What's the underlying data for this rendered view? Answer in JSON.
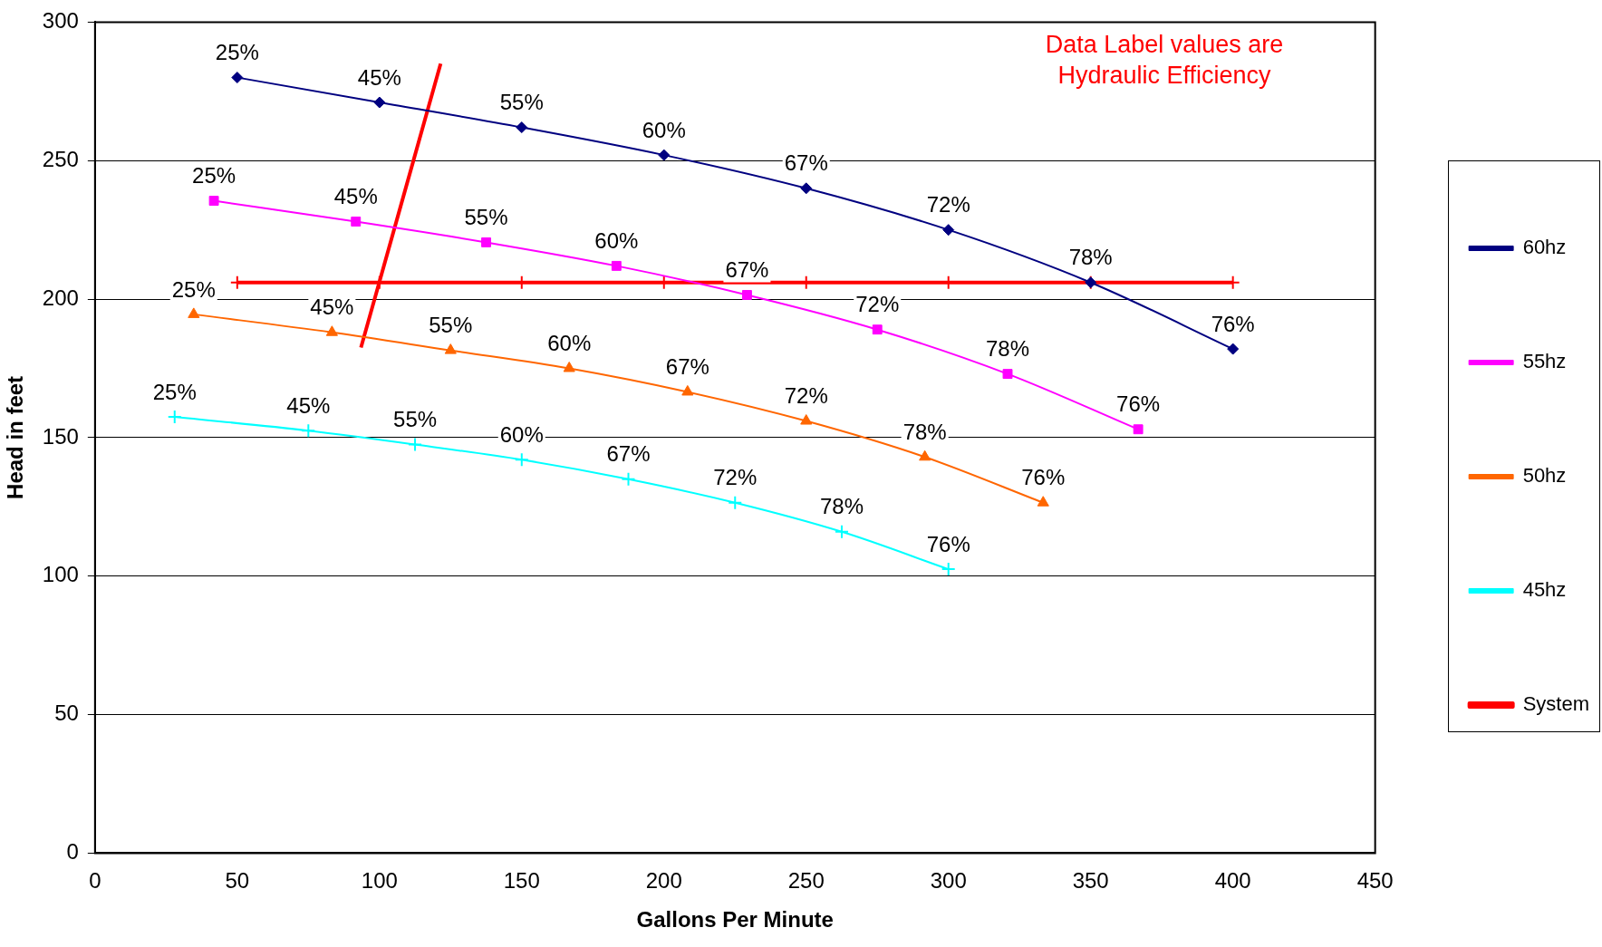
{
  "chart_data": {
    "type": "line",
    "xlabel": "Gallons Per Minute",
    "ylabel": "Head in feet",
    "xlim": [
      0,
      450
    ],
    "xticks": [
      0,
      50,
      100,
      150,
      200,
      250,
      300,
      350,
      400,
      450
    ],
    "ylim": [
      0,
      300
    ],
    "yticks": [
      0,
      50,
      100,
      150,
      200,
      250,
      300
    ],
    "grid": "y",
    "legend": "right",
    "annotations": [
      "Data Label values are Hydraulic Efficiency",
      {
        "text": "25%",
        "x": 50,
        "y": 280
      },
      {
        "text": "45%",
        "x": 100,
        "y": 271
      },
      {
        "text": "55%",
        "x": 150,
        "y": 262
      },
      {
        "text": "60%",
        "x": 200,
        "y": 252
      },
      {
        "text": "67%",
        "x": 250,
        "y": 240
      },
      {
        "text": "72%",
        "x": 300,
        "y": 225
      },
      {
        "text": "78%",
        "x": 350,
        "y": 206
      },
      {
        "text": "76%",
        "x": 400,
        "y": 182
      },
      {
        "text": "25%",
        "x": 41.8,
        "y": 235.5
      },
      {
        "text": "45%",
        "x": 91.7,
        "y": 228
      },
      {
        "text": "55%",
        "x": 137.5,
        "y": 220.5
      },
      {
        "text": "60%",
        "x": 183.3,
        "y": 212
      },
      {
        "text": "67%",
        "x": 229.2,
        "y": 201.5
      },
      {
        "text": "72%",
        "x": 275,
        "y": 189
      },
      {
        "text": "78%",
        "x": 320.8,
        "y": 173
      },
      {
        "text": "76%",
        "x": 366.7,
        "y": 153
      },
      {
        "text": "25%",
        "x": 34.7,
        "y": 194.5
      },
      {
        "text": "45%",
        "x": 83.3,
        "y": 188
      },
      {
        "text": "55%",
        "x": 125,
        "y": 181.5
      },
      {
        "text": "60%",
        "x": 166.7,
        "y": 175
      },
      {
        "text": "67%",
        "x": 208.3,
        "y": 166.5
      },
      {
        "text": "72%",
        "x": 250,
        "y": 156
      },
      {
        "text": "78%",
        "x": 291.7,
        "y": 143
      },
      {
        "text": "76%",
        "x": 333.3,
        "y": 126.5
      },
      {
        "text": "25%",
        "x": 28,
        "y": 157.5
      },
      {
        "text": "45%",
        "x": 75,
        "y": 152.5
      },
      {
        "text": "55%",
        "x": 112.5,
        "y": 147.5
      },
      {
        "text": "60%",
        "x": 150,
        "y": 142
      },
      {
        "text": "67%",
        "x": 187.5,
        "y": 135
      },
      {
        "text": "72%",
        "x": 225,
        "y": 126.5
      },
      {
        "text": "78%",
        "x": 262.5,
        "y": 116
      },
      {
        "text": "76%",
        "x": 300,
        "y": 102.5
      }
    ],
    "series": [
      {
        "name": "60hz",
        "color": "#000080",
        "marker": "diamond",
        "x": [
          50,
          100,
          150,
          200,
          250,
          300,
          350,
          400
        ],
        "values": [
          280,
          271,
          262,
          252,
          240,
          225,
          206,
          182
        ]
      },
      {
        "name": "55hz",
        "color": "#ff00ff",
        "marker": "square",
        "x": [
          41.8,
          91.7,
          137.5,
          183.3,
          229.2,
          275,
          320.8,
          366.7
        ],
        "values": [
          235.5,
          228,
          220.5,
          212,
          201.5,
          189,
          173,
          153
        ]
      },
      {
        "name": "50hz",
        "color": "#ff6600",
        "marker": "triangle",
        "x": [
          34.7,
          83.3,
          125,
          166.7,
          208.3,
          250,
          291.7,
          333.3
        ],
        "values": [
          194.5,
          188,
          181.5,
          175,
          166.5,
          156,
          143,
          126.5
        ]
      },
      {
        "name": "45hz",
        "color": "#00ffff",
        "marker": "cross",
        "x": [
          28,
          75,
          112.5,
          150,
          187.5,
          225,
          262.5,
          300
        ],
        "values": [
          157.5,
          152.5,
          147.5,
          142,
          135,
          126.5,
          116,
          102.5
        ]
      },
      {
        "name": "System",
        "color": "#ff0000",
        "marker": "cross",
        "x": [
          50,
          100,
          150,
          200,
          250,
          300,
          350,
          400
        ],
        "values": [
          206,
          206,
          206,
          206,
          206,
          206,
          206,
          206
        ]
      },
      {
        "color": "#ff0000",
        "marker": "none",
        "x": [
          93.5,
          121.5
        ],
        "values": [
          182.5,
          285
        ]
      }
    ]
  }
}
